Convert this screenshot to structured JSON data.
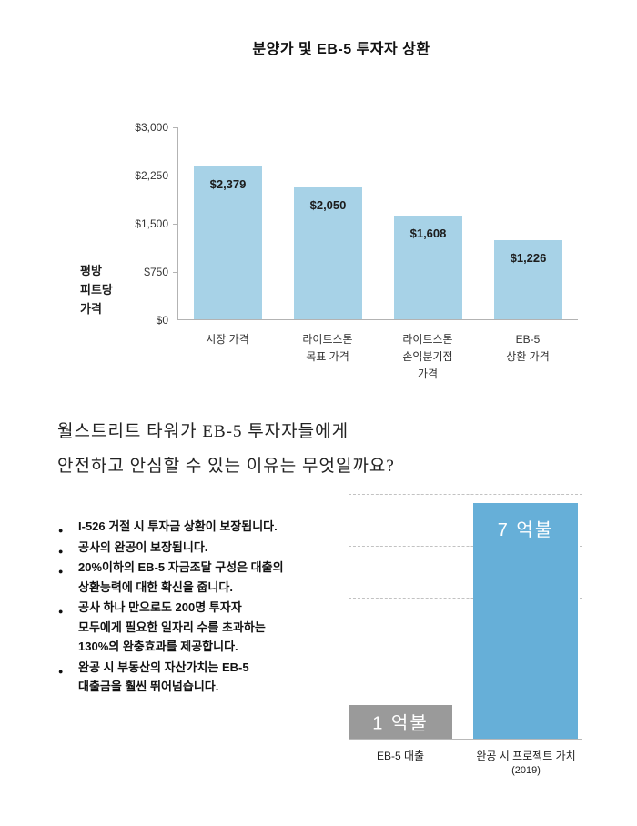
{
  "chart_data": [
    {
      "type": "bar",
      "title": "분양가 및 EB-5 투자자 상환",
      "ylabel": "평방 피트당 가격",
      "ylabel_lines": [
        "평방",
        "피트당",
        "가격"
      ],
      "ylim": [
        0,
        3000
      ],
      "yticks": [
        "$3,000",
        "$2,250",
        "$1,500",
        "$750",
        "$0"
      ],
      "ytick_values": [
        3000,
        2250,
        1500,
        750,
        0
      ],
      "categories": [
        "시장 가격",
        "라이트스톤 목표 가격",
        "라이트스톤 손익분기점 가격",
        "EB-5 상환 가격"
      ],
      "category_lines": [
        [
          "시장 가격"
        ],
        [
          "라이트스톤",
          "목표 가격"
        ],
        [
          "라이트스톤",
          "손익분기점",
          "가격"
        ],
        [
          "EB-5",
          "상환 가격"
        ]
      ],
      "values": [
        2379,
        2050,
        1608,
        1226
      ],
      "value_labels": [
        "$2,379",
        "$2,050",
        "$1,608",
        "$1,226"
      ],
      "bar_color": "#a7d2e7",
      "grid": false,
      "legend": "none"
    },
    {
      "type": "bar",
      "title": "",
      "categories": [
        "EB-5 대출",
        "완공 시 프로젝트 가치"
      ],
      "sub_label": "(2019)",
      "values": [
        1,
        7
      ],
      "value_labels": [
        "1 억불",
        "7 억불"
      ],
      "bar_colors": [
        "#9a9a9a",
        "#66afd8"
      ],
      "ylim": [
        0,
        7.3
      ],
      "grid": "dashed horizontal",
      "legend": "none"
    }
  ],
  "heading": {
    "line1": "월스트리트 타워가 EB-5 투자자들에게",
    "line2": "안전하고 안심할 수 있는 이유는 무엇일까요?"
  },
  "bullets": [
    [
      "I-526 거절 시 투자금 상환이 보장됩니다."
    ],
    [
      "공사의 완공이 보장됩니다."
    ],
    [
      "20%이하의 EB-5 자금조달 구성은 대출의",
      "상환능력에 대한 확신을 줍니다."
    ],
    [
      "공사 하나 만으로도 200명 투자자",
      "모두에게 필요한 일자리 수를 초과하는",
      "130%의 완충효과를 제공합니다."
    ],
    [
      "완공 시 부동산의 자산가치는 EB-5",
      "대출금을 훨씬 뛰어넘습니다."
    ]
  ],
  "colors": {
    "light_blue_bar": "#a7d2e7",
    "blue_bar": "#66afd8",
    "gray_bar": "#9a9a9a",
    "axis": "#b3b3b3",
    "text": "#111111"
  }
}
